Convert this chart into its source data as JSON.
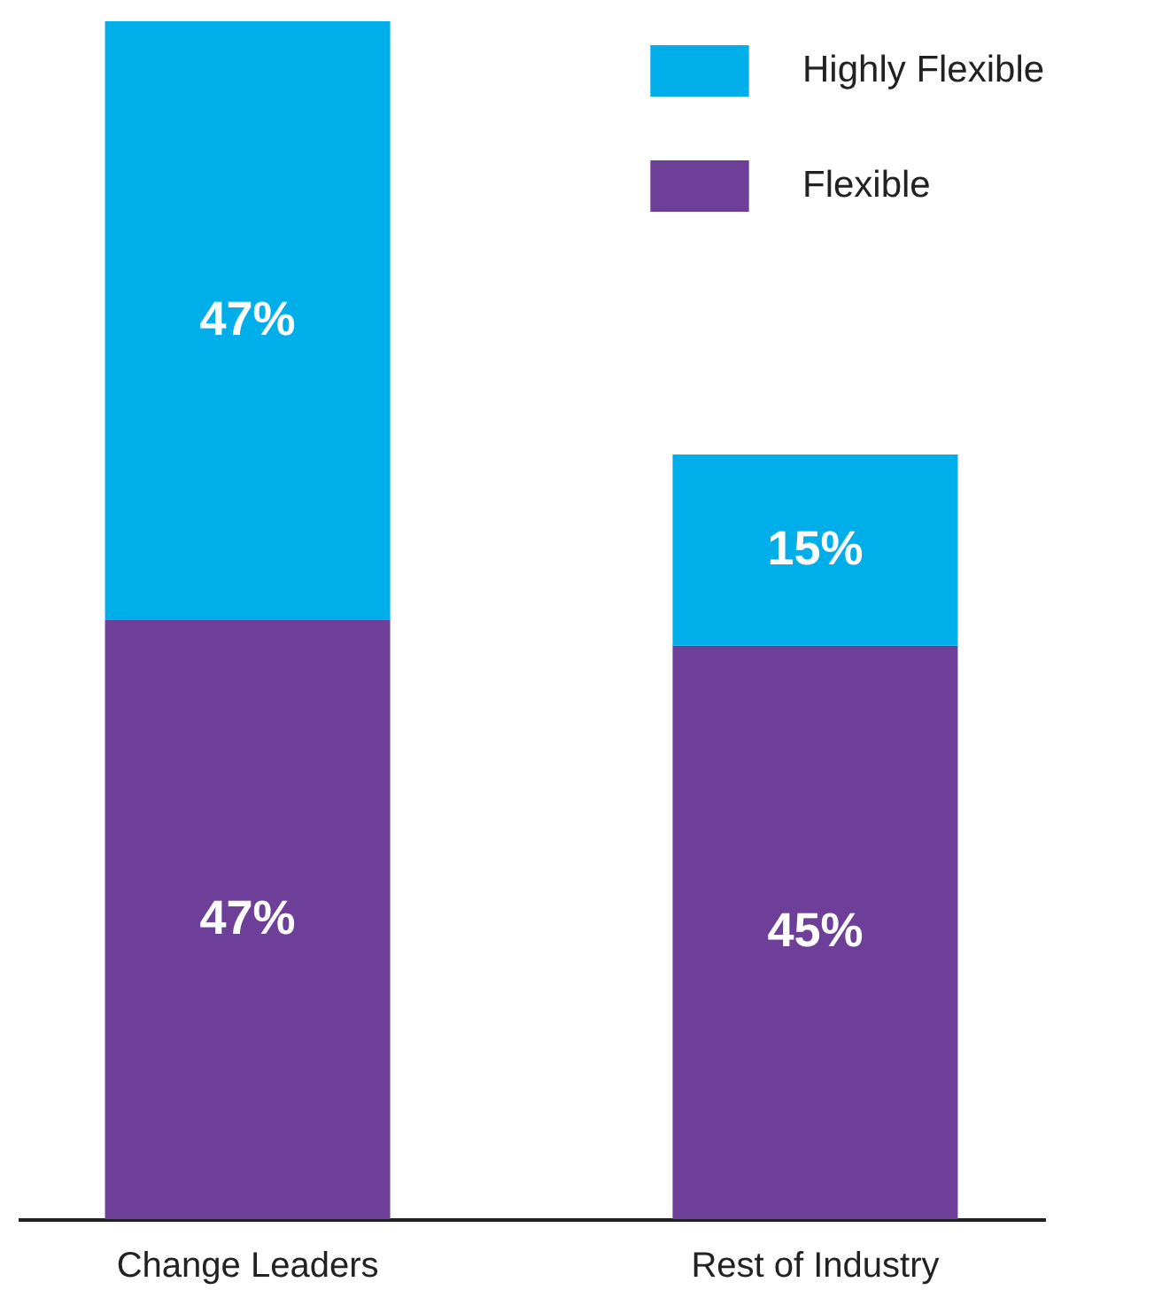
{
  "chart_data": {
    "type": "bar",
    "stacked": true,
    "legend": "top right",
    "categories": [
      "Change Leaders",
      "Rest of Industry"
    ],
    "series": [
      {
        "name": "Flexible",
        "color": "#6e3f98",
        "values": [
          47,
          45
        ],
        "value_labels": [
          "47%",
          "45%"
        ]
      },
      {
        "name": "Highly Flexible",
        "color": "#00aeea",
        "values": [
          47,
          15
        ],
        "value_labels": [
          "47%",
          "15%"
        ]
      }
    ]
  }
}
